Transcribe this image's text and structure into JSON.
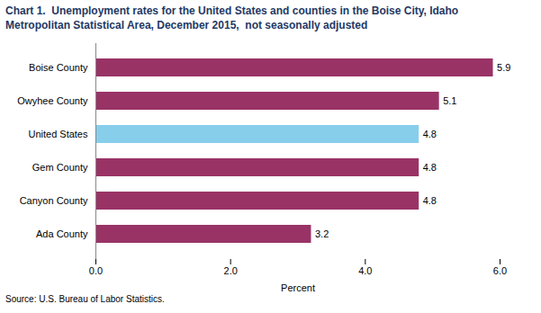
{
  "chart_data": {
    "type": "bar",
    "orientation": "horizontal",
    "title": "Chart 1.  Unemployment rates for the United States and counties in the Boise City, Idaho",
    "subtitle": "Metropolitan Statistical Area, December 2015,  not seasonally adjusted",
    "caption": "Source: U.S. Bureau of Labor Statistics.",
    "xlabel": "Percent",
    "categories": [
      "Boise County",
      "Owyhee County",
      "United States",
      "Gem County",
      "Canyon County",
      "Ada County"
    ],
    "values": [
      5.9,
      5.1,
      4.8,
      4.8,
      4.8,
      3.2
    ],
    "colors": [
      "#993366",
      "#993366",
      "#87CEEB",
      "#993366",
      "#993366",
      "#993366"
    ],
    "xlim": [
      0,
      6.0
    ],
    "xticks": [
      {
        "value": 0,
        "label": "0.0"
      },
      {
        "value": 2,
        "label": "2.0"
      },
      {
        "value": 4,
        "label": "4.0"
      },
      {
        "value": 6,
        "label": "6.0"
      }
    ],
    "data_labels": true,
    "grid": false
  }
}
